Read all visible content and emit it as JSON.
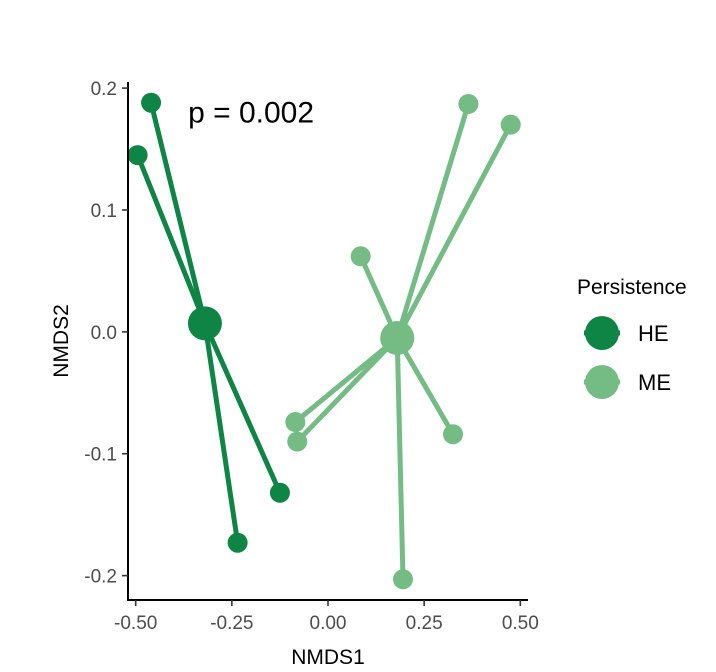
{
  "chart_data": {
    "type": "scatter",
    "title": "",
    "xlabel": "NMDS1",
    "ylabel": "NMDS2",
    "xlim": [
      -0.52,
      0.52
    ],
    "ylim": [
      -0.22,
      0.205
    ],
    "x_ticks": [
      -0.5,
      -0.25,
      0.0,
      0.25,
      0.5
    ],
    "x_tick_labels": [
      "-0.50",
      "-0.25",
      "0.00",
      "0.25",
      "0.50"
    ],
    "y_ticks": [
      -0.2,
      -0.1,
      0.0,
      0.1,
      0.2
    ],
    "y_tick_labels": [
      "-0.2",
      "-0.1",
      "0.0",
      "0.1",
      "0.2"
    ],
    "grid": false,
    "annotation": {
      "text": "p = 0.002",
      "x": -0.2,
      "y": 0.18
    },
    "legend": {
      "title": "Persistence",
      "placement": "right"
    },
    "series": [
      {
        "name": "HE",
        "color": "#0e8544",
        "centroid": {
          "x": -0.32,
          "y": 0.007
        },
        "points": [
          {
            "x": -0.46,
            "y": 0.188
          },
          {
            "x": -0.495,
            "y": 0.145
          },
          {
            "x": -0.125,
            "y": -0.132
          },
          {
            "x": -0.235,
            "y": -0.173
          }
        ]
      },
      {
        "name": "ME",
        "color": "#74bb84",
        "centroid": {
          "x": 0.18,
          "y": -0.005
        },
        "points": [
          {
            "x": 0.365,
            "y": 0.187
          },
          {
            "x": 0.475,
            "y": 0.17
          },
          {
            "x": 0.085,
            "y": 0.062
          },
          {
            "x": -0.085,
            "y": -0.074
          },
          {
            "x": -0.08,
            "y": -0.09
          },
          {
            "x": 0.325,
            "y": -0.084
          },
          {
            "x": 0.195,
            "y": -0.203
          }
        ]
      }
    ]
  }
}
